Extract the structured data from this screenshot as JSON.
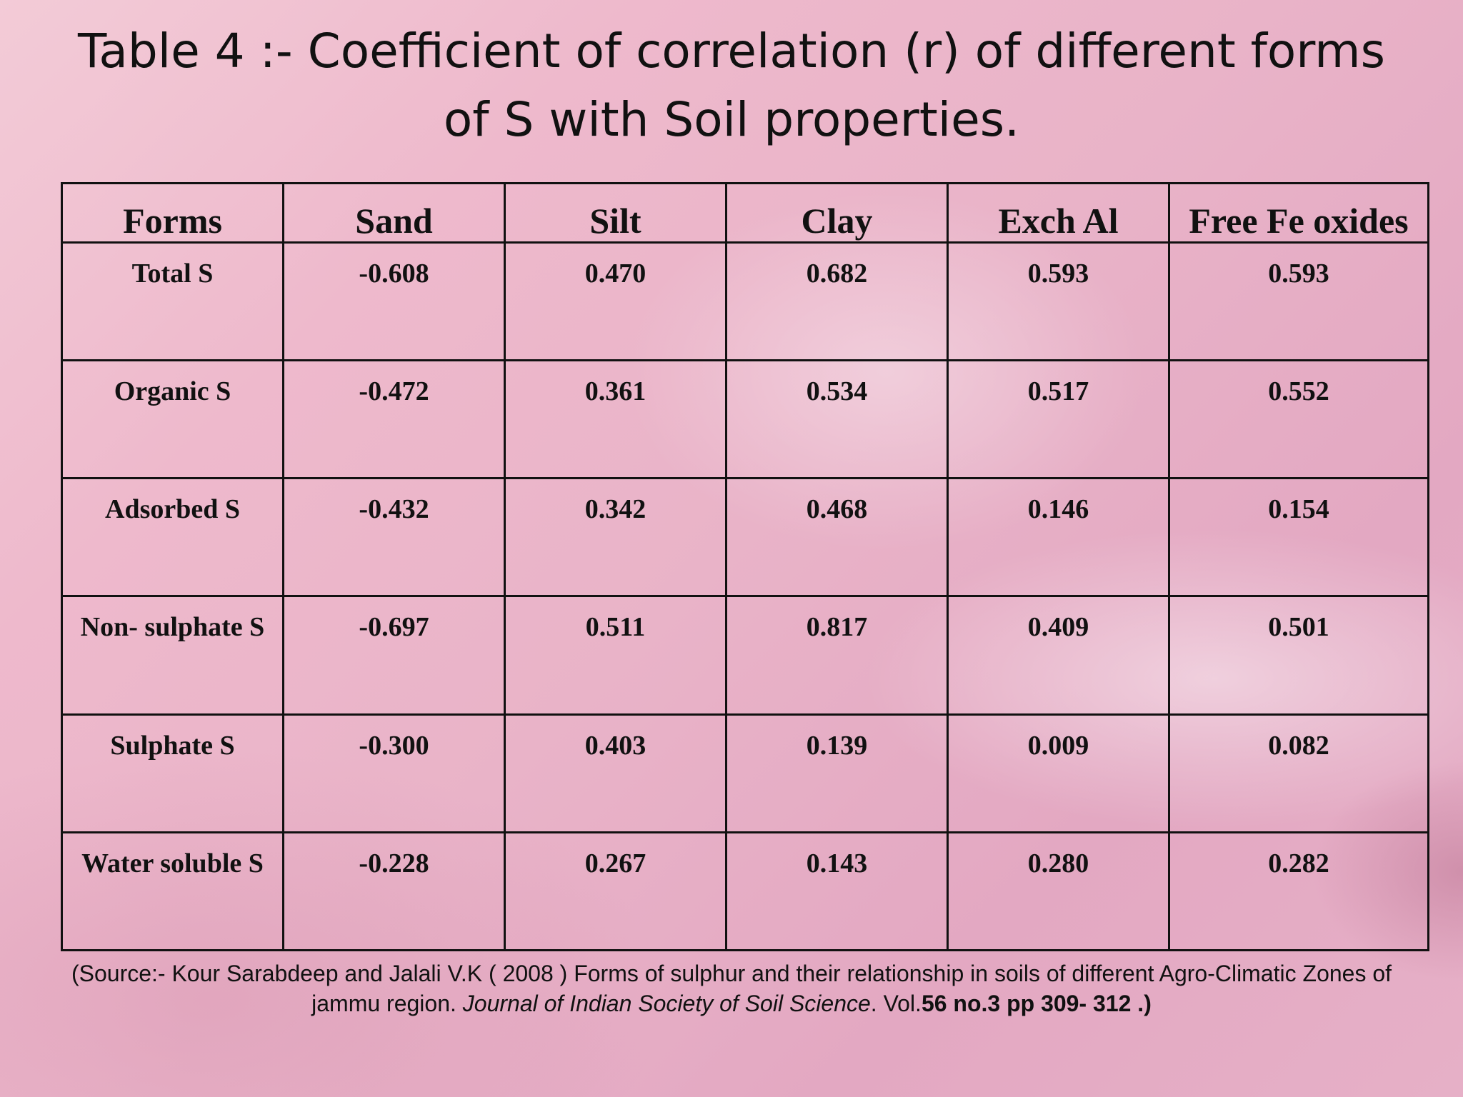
{
  "title": {
    "line1": "Table 4 :- Coefficient of correlation (r) of different forms",
    "line2": "of S with Soil properties."
  },
  "table": {
    "headers": [
      "Forms",
      "Sand",
      "Silt",
      "Clay",
      "Exch Al",
      "Free Fe oxides"
    ],
    "rows": [
      [
        "Total S",
        "-0.608",
        "0.470",
        "0.682",
        "0.593",
        "0.593"
      ],
      [
        "Organic S",
        "-0.472",
        "0.361",
        "0.534",
        "0.517",
        "0.552"
      ],
      [
        "Adsorbed S",
        "-0.432",
        "0.342",
        "0.468",
        "0.146",
        "0.154"
      ],
      [
        "Non- sulphate S",
        "-0.697",
        "0.511",
        "0.817",
        "0.409",
        "0.501"
      ],
      [
        "Sulphate S",
        "-0.300",
        "0.403",
        "0.139",
        "0.009",
        "0.082"
      ],
      [
        "Water soluble S",
        "-0.228",
        "0.267",
        "0.143",
        "0.280",
        "0.282"
      ]
    ]
  },
  "source": {
    "line1": "(Source:-  Kour Sarabdeep and Jalali V.K  ( 2008 )  Forms of sulphur and their relationship  in soils of different Agro-Climatic Zones of",
    "line2_plain": "jammu region. ",
    "line2_journal": "Journal of Indian Society of Soil Science",
    "line2_vol_prefix": ". Vol.",
    "line2_vol": "56   no.3 pp 309- 312 .)"
  }
}
